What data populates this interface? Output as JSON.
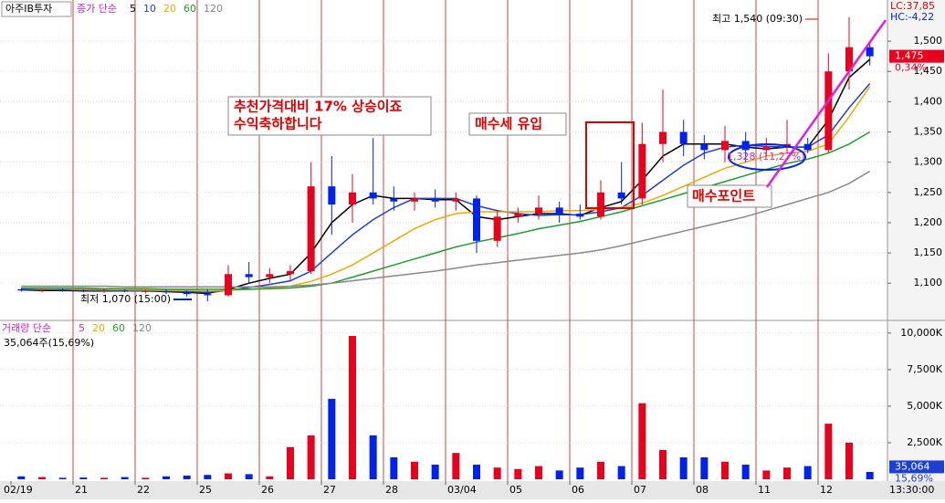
{
  "window": {
    "stock_name": "아주IB투자",
    "time": "13:30:00"
  },
  "chart_data": [
    {
      "type": "candlestick",
      "legend_prefix": "종가 단순",
      "categories": [
        "02/19",
        null,
        null,
        "21",
        null,
        null,
        "22",
        null,
        null,
        "25",
        null,
        null,
        "26",
        null,
        null,
        "27",
        null,
        null,
        "28",
        null,
        null,
        "03/04",
        null,
        null,
        "05",
        null,
        null,
        "06",
        null,
        null,
        "07",
        null,
        null,
        "08",
        null,
        null,
        "11",
        null,
        null,
        "12",
        null,
        null
      ],
      "open": [
        1090,
        1088,
        1089,
        1088,
        1087,
        1088,
        1086,
        1087,
        1085,
        1082,
        1080,
        1115,
        1110,
        1115,
        1120,
        1260,
        1230,
        1250,
        1240,
        1235,
        1240,
        1235,
        1240,
        1170,
        1210,
        1215,
        1225,
        1215,
        1210,
        1250,
        1240,
        1330,
        1350,
        1330,
        1320,
        1335,
        1320,
        1325,
        1330,
        1320,
        1450,
        1490
      ],
      "high": [
        1092,
        1090,
        1091,
        1090,
        1090,
        1090,
        1089,
        1090,
        1088,
        1090,
        1130,
        1135,
        1125,
        1130,
        1300,
        1310,
        1280,
        1340,
        1260,
        1250,
        1255,
        1250,
        1245,
        1220,
        1225,
        1245,
        1235,
        1230,
        1270,
        1300,
        1365,
        1420,
        1370,
        1345,
        1360,
        1350,
        1340,
        1370,
        1340,
        1480,
        1540,
        1500
      ],
      "low": [
        1086,
        1085,
        1086,
        1085,
        1084,
        1085,
        1083,
        1082,
        1078,
        1070,
        1078,
        1100,
        1100,
        1105,
        1115,
        1180,
        1200,
        1230,
        1220,
        1220,
        1225,
        1220,
        1150,
        1160,
        1200,
        1205,
        1200,
        1205,
        1205,
        1230,
        1230,
        1300,
        1310,
        1305,
        1300,
        1300,
        1310,
        1315,
        1315,
        1315,
        1420,
        1460
      ],
      "close": [
        1088,
        1089,
        1088,
        1087,
        1088,
        1086,
        1087,
        1085,
        1082,
        1080,
        1115,
        1110,
        1115,
        1120,
        1260,
        1230,
        1250,
        1240,
        1235,
        1240,
        1235,
        1240,
        1170,
        1210,
        1215,
        1225,
        1215,
        1210,
        1250,
        1240,
        1330,
        1350,
        1330,
        1320,
        1335,
        1320,
        1325,
        1330,
        1320,
        1450,
        1490,
        1475
      ],
      "up_color": "#e8001c",
      "down_color": "#0022ee",
      "series": [
        {
          "name": "5",
          "color": "#000000",
          "values": [
            1089,
            1088,
            1088,
            1087,
            1087,
            1087,
            1087,
            1086,
            1085,
            1083,
            1090,
            1100,
            1108,
            1115,
            1150,
            1200,
            1230,
            1245,
            1240,
            1240,
            1238,
            1238,
            1210,
            1205,
            1210,
            1215,
            1215,
            1212,
            1225,
            1235,
            1270,
            1310,
            1330,
            1330,
            1330,
            1325,
            1322,
            1325,
            1325,
            1370,
            1440,
            1470
          ]
        },
        {
          "name": "10",
          "color": "#1f3fd0",
          "values": [
            1090,
            1089,
            1089,
            1088,
            1088,
            1087,
            1087,
            1087,
            1086,
            1085,
            1088,
            1093,
            1098,
            1104,
            1120,
            1150,
            1180,
            1205,
            1225,
            1240,
            1240,
            1240,
            1228,
            1220,
            1215,
            1212,
            1213,
            1213,
            1218,
            1225,
            1245,
            1270,
            1295,
            1315,
            1325,
            1328,
            1326,
            1325,
            1325,
            1345,
            1390,
            1430
          ]
        },
        {
          "name": "20",
          "color": "#f0a800",
          "values": [
            1092,
            1091,
            1091,
            1090,
            1090,
            1089,
            1089,
            1088,
            1088,
            1087,
            1088,
            1090,
            1092,
            1095,
            1103,
            1115,
            1130,
            1150,
            1170,
            1190,
            1205,
            1215,
            1218,
            1218,
            1218,
            1218,
            1220,
            1220,
            1222,
            1225,
            1232,
            1245,
            1260,
            1275,
            1290,
            1300,
            1310,
            1315,
            1318,
            1330,
            1375,
            1425
          ]
        },
        {
          "name": "60",
          "color": "#1e9e2e",
          "values": [
            1092,
            1092,
            1092,
            1092,
            1091,
            1091,
            1091,
            1090,
            1090,
            1090,
            1090,
            1090,
            1091,
            1092,
            1095,
            1100,
            1110,
            1120,
            1130,
            1140,
            1150,
            1160,
            1168,
            1175,
            1182,
            1190,
            1196,
            1202,
            1210,
            1218,
            1228,
            1238,
            1248,
            1258,
            1268,
            1278,
            1288,
            1298,
            1305,
            1315,
            1330,
            1350
          ]
        },
        {
          "name": "120",
          "color": "#888888",
          "values": [
            1095,
            1095,
            1095,
            1095,
            1095,
            1094,
            1094,
            1094,
            1094,
            1094,
            1094,
            1094,
            1094,
            1095,
            1097,
            1100,
            1104,
            1108,
            1112,
            1116,
            1120,
            1125,
            1130,
            1134,
            1138,
            1142,
            1146,
            1150,
            1155,
            1162,
            1170,
            1178,
            1186,
            1194,
            1202,
            1210,
            1220,
            1230,
            1240,
            1250,
            1265,
            1285
          ]
        }
      ],
      "ylim": [
        1040,
        1565
      ],
      "yticks": [
        {
          "value": 1100,
          "label": "1,100"
        },
        {
          "value": 1150,
          "label": "1,150"
        },
        {
          "value": 1200,
          "label": "1,200"
        },
        {
          "value": 1250,
          "label": "1,250"
        },
        {
          "value": 1300,
          "label": "1,300"
        },
        {
          "value": 1350,
          "label": "1,350"
        },
        {
          "value": 1400,
          "label": "1,400"
        },
        {
          "value": 1450,
          "label": "1,450"
        },
        {
          "value": 1500,
          "label": "1,500"
        }
      ],
      "lc_label": "LC:37,85",
      "hc_label": "HC:-4,22",
      "high_label": "최고 1,540 (09:30)",
      "low_label": "최저 1,070 (15:00)",
      "last_price": {
        "value": 1475,
        "label": "1,475"
      },
      "change_label": "0,34%",
      "annotations": [
        "추천가격대비  17% 상승이죠",
        "수익축하합니다",
        "매수세  유입",
        "매수포인트",
        "1,328 (11,27%)"
      ]
    },
    {
      "type": "bar",
      "legend_prefix": "거래량 단순",
      "ma_names": [
        {
          "name": "5",
          "color": "#cc22cc"
        },
        {
          "name": "20",
          "color": "#f0a800"
        },
        {
          "name": "60",
          "color": "#1e9e2e"
        },
        {
          "name": "120",
          "color": "#888888"
        }
      ],
      "summary": "35,064주(15,69%)",
      "values": [
        200,
        150,
        100,
        120,
        100,
        150,
        100,
        200,
        250,
        300,
        400,
        350,
        200,
        2200,
        3000,
        5500,
        9800,
        3000,
        1500,
        1200,
        1000,
        1800,
        1000,
        800,
        700,
        900,
        600,
        800,
        1200,
        900,
        5200,
        2000,
        1500,
        1500,
        1200,
        1000,
        600,
        800,
        900,
        3800,
        2500,
        500
      ],
      "ylim": [
        0,
        10800
      ],
      "yticks": [
        {
          "value": 2500,
          "label": "2,500K"
        },
        {
          "value": 5000,
          "label": "5,000K"
        },
        {
          "value": 7500,
          "label": "7,500K"
        },
        {
          "value": 10000,
          "label": "10,000K"
        }
      ],
      "last_volume": {
        "value": 35.064,
        "label": "35,064"
      },
      "ratio_label": "15,69%"
    }
  ]
}
